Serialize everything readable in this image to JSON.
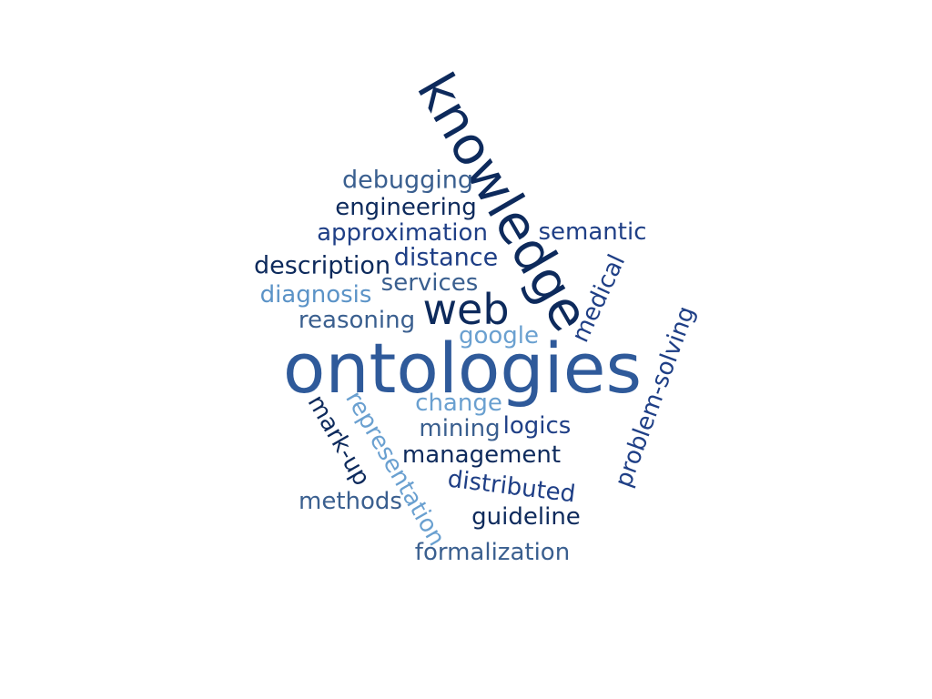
{
  "colors": {
    "navy": "#0d2a5c",
    "darkblue": "#1f3f86",
    "blue": "#2f5a9a",
    "steel": "#3a5f8f",
    "lightblue": "#5b93c7",
    "paleblue": "#6aa0d0"
  },
  "words": {
    "ontologies": "ontologies",
    "knowledge": "knowledge",
    "web": "web",
    "debugging": "debugging",
    "engineering": "engineering",
    "approximation": "approximation",
    "semantic": "semantic",
    "description": "description",
    "distance": "distance",
    "diagnosis": "diagnosis",
    "services": "services",
    "medical": "medical",
    "reasoning": "reasoning",
    "google": "google",
    "problem_solving": "problem-solving",
    "change": "change",
    "representation": "representation",
    "mark_up": "mark-up",
    "mining": "mining",
    "logics": "logics",
    "management": "management",
    "distributed": "distributed",
    "methods": "methods",
    "guideline": "guideline",
    "formalization": "formalization"
  }
}
